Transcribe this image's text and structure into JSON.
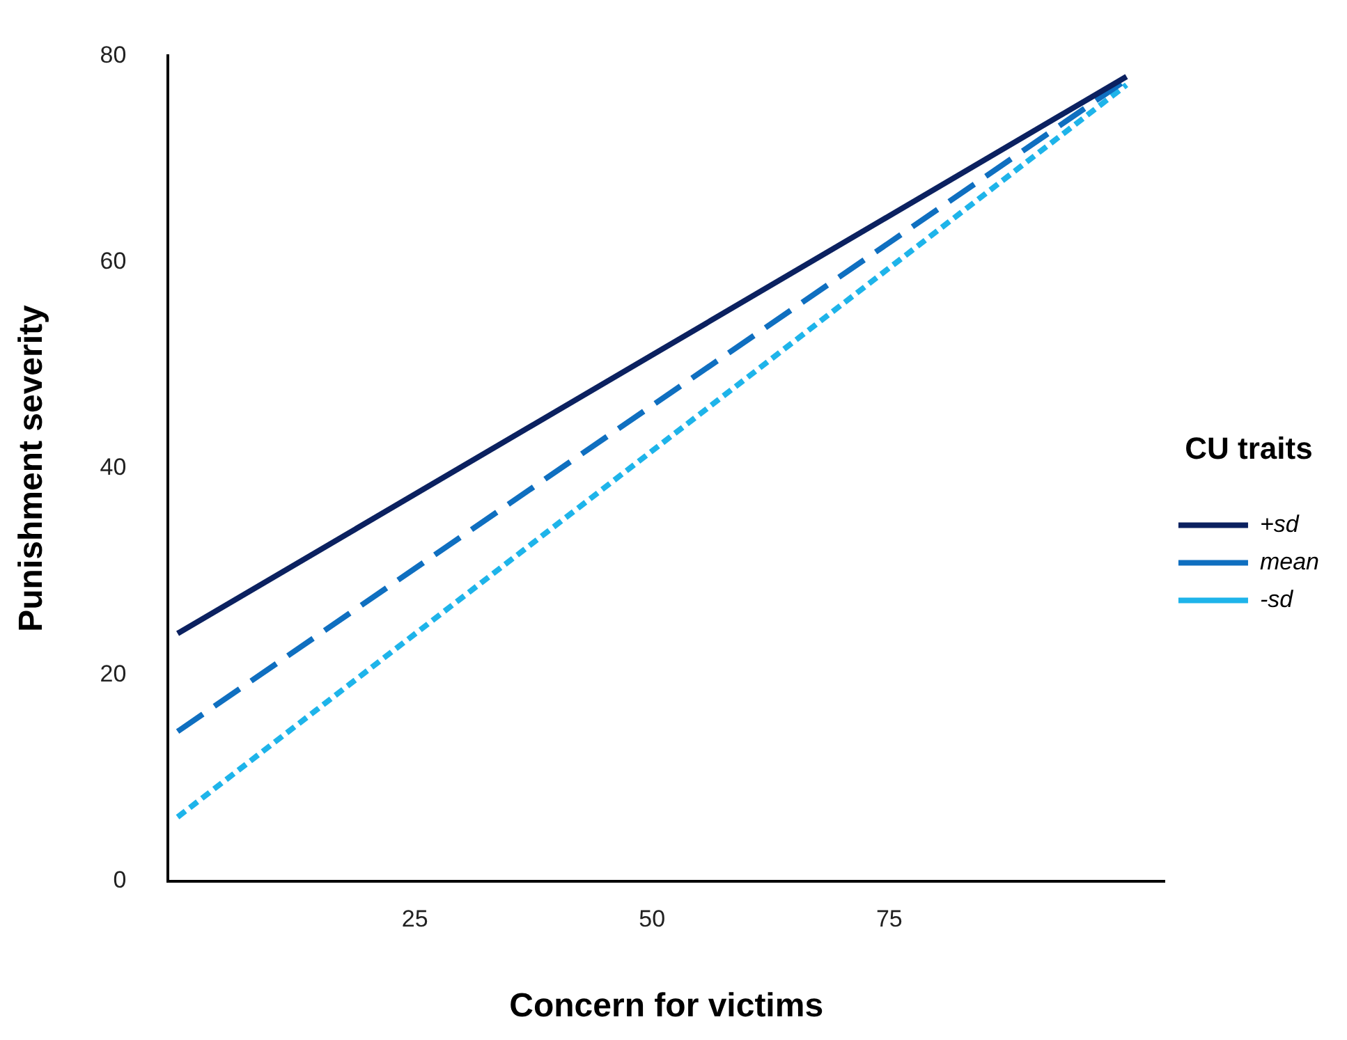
{
  "chart_data": {
    "type": "line",
    "xlabel": "Concern for victims",
    "ylabel": "Punishment severity",
    "legend_title": "CU traits",
    "legend": "right",
    "grid": false,
    "marker": "none",
    "xlim": [
      -1,
      104
    ],
    "xticks": [
      25,
      50,
      75
    ],
    "ylim": [
      0,
      80
    ],
    "yticks": [
      0,
      20,
      40,
      60,
      80
    ],
    "x": [
      0,
      100
    ],
    "series": [
      {
        "name": "+sd",
        "color": "#0b2160",
        "values": [
          24,
          78
        ],
        "line_style": "solid"
      },
      {
        "name": "mean",
        "color": "#0f6fc0",
        "values": [
          14.5,
          77.7
        ],
        "line_style": "dashed"
      },
      {
        "name": "-sd",
        "color": "#1eb4ea",
        "values": [
          6.2,
          77.2
        ],
        "line_style": "dotted"
      }
    ]
  }
}
